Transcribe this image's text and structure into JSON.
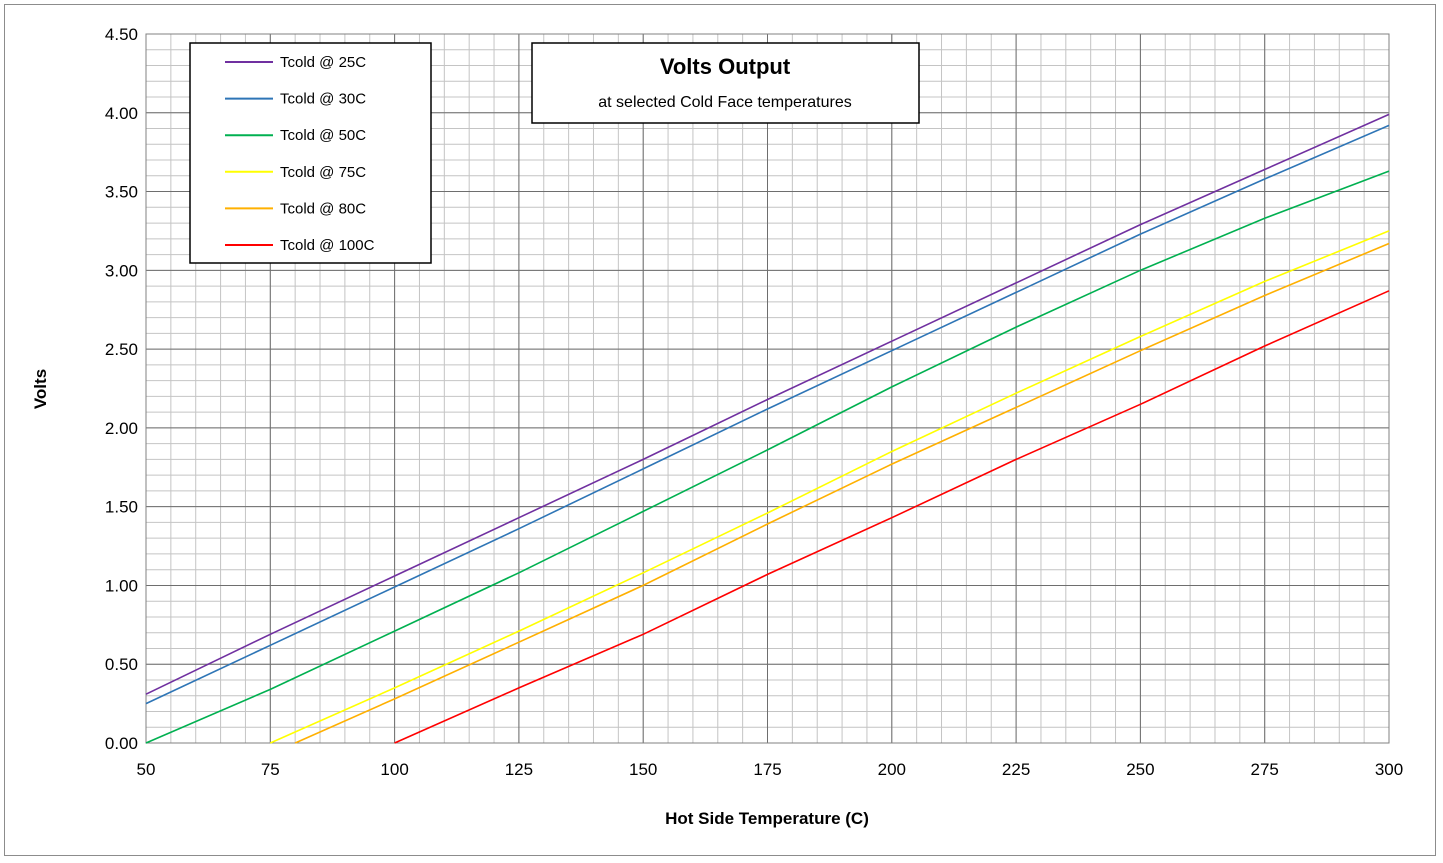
{
  "chart_data": {
    "type": "line",
    "title": "Volts Output",
    "subtitle": "at selected Cold Face temperatures",
    "xlabel": "Hot Side Temperature (C)",
    "ylabel": "Volts",
    "xlim": [
      50,
      300
    ],
    "ylim": [
      0,
      4.5
    ],
    "x_ticks": [
      "50",
      "75",
      "100",
      "125",
      "150",
      "175",
      "200",
      "225",
      "250",
      "275",
      "300"
    ],
    "y_ticks": [
      "0.00",
      "0.50",
      "1.00",
      "1.50",
      "2.00",
      "2.50",
      "3.00",
      "3.50",
      "4.00",
      "4.50"
    ],
    "grid": true,
    "legend_position": "top-left",
    "series": [
      {
        "name": "Tcold @ 25C",
        "color": "#7030a0",
        "x": [
          50,
          75,
          100,
          125,
          150,
          175,
          200,
          225,
          250,
          275,
          300
        ],
        "y": [
          0.31,
          0.69,
          1.06,
          1.43,
          1.8,
          2.18,
          2.55,
          2.92,
          3.29,
          3.64,
          3.99
        ]
      },
      {
        "name": "Tcold @ 30C",
        "color": "#2e75b6",
        "x": [
          50,
          75,
          100,
          125,
          150,
          175,
          200,
          225,
          250,
          275,
          300
        ],
        "y": [
          0.25,
          0.62,
          0.99,
          1.36,
          1.74,
          2.12,
          2.49,
          2.86,
          3.23,
          3.58,
          3.92
        ]
      },
      {
        "name": "Tcold @ 50C",
        "color": "#00b050",
        "x": [
          50,
          75,
          100,
          125,
          150,
          175,
          200,
          225,
          250,
          275,
          300
        ],
        "y": [
          0.0,
          0.34,
          0.71,
          1.08,
          1.47,
          1.86,
          2.26,
          2.64,
          3.0,
          3.33,
          3.63
        ]
      },
      {
        "name": "Tcold @ 75C",
        "color": "#ffff00",
        "x": [
          75,
          100,
          125,
          150,
          175,
          200,
          225,
          250,
          275,
          300
        ],
        "y": [
          0.0,
          0.35,
          0.71,
          1.08,
          1.46,
          1.85,
          2.22,
          2.58,
          2.93,
          3.25
        ]
      },
      {
        "name": "Tcold @ 80C",
        "color": "#ffb000",
        "x": [
          80,
          100,
          125,
          150,
          175,
          200,
          225,
          250,
          275,
          300
        ],
        "y": [
          0.0,
          0.28,
          0.64,
          1.0,
          1.39,
          1.77,
          2.13,
          2.49,
          2.84,
          3.17
        ]
      },
      {
        "name": "Tcold @ 100C",
        "color": "#ff0000",
        "x": [
          100,
          125,
          150,
          175,
          200,
          225,
          250,
          275,
          300
        ],
        "y": [
          0.0,
          0.35,
          0.69,
          1.07,
          1.43,
          1.8,
          2.15,
          2.52,
          2.87
        ]
      }
    ]
  }
}
